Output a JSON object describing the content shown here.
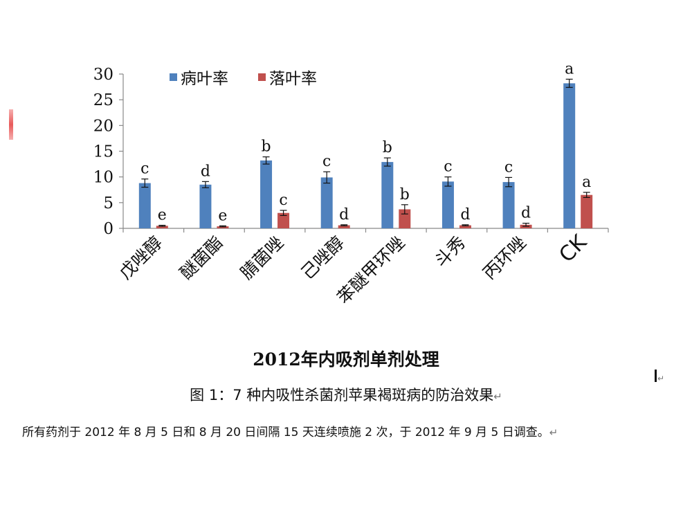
{
  "chart_data": {
    "type": "bar",
    "title": "2012年内吸剂单剂处理",
    "categories": [
      "戊唑醇",
      "醚菌酯",
      "腈菌唑",
      "己唑醇",
      "苯醚甲环唑",
      "斗秀",
      "丙环唑",
      "CK"
    ],
    "series": [
      {
        "name": "病叶率",
        "color": "#4f81bd",
        "values": [
          8.8,
          8.5,
          13.2,
          9.9,
          12.9,
          9.1,
          9.0,
          28.2
        ],
        "errors": [
          0.8,
          0.6,
          0.7,
          1.1,
          0.8,
          0.9,
          0.9,
          0.8
        ],
        "labels": [
          "c",
          "d",
          "b",
          "c",
          "b",
          "c",
          "c",
          "a"
        ]
      },
      {
        "name": "落叶率",
        "color": "#c0504d",
        "values": [
          0.5,
          0.4,
          3.0,
          0.6,
          3.7,
          0.6,
          0.7,
          6.5
        ],
        "errors": [
          0.1,
          0.1,
          0.5,
          0.1,
          0.9,
          0.1,
          0.3,
          0.5
        ],
        "labels": [
          "e",
          "e",
          "c",
          "d",
          "b",
          "d",
          "d",
          "a"
        ]
      }
    ],
    "ylim": [
      0,
      30
    ],
    "yticks": [
      "0",
      "5",
      "10",
      "15",
      "20",
      "25",
      "30"
    ],
    "legend_position": "top-left"
  },
  "caption": "图 1：7 种内吸性杀菌剂苹果褐斑病的防治效果",
  "note": "所有药剂于 2012 年 8 月 5 日和 8 月 20 日间隔 15 天连续喷施 2 次，于 2012 年 9 月 5 日调查。",
  "return_mark": "↵"
}
